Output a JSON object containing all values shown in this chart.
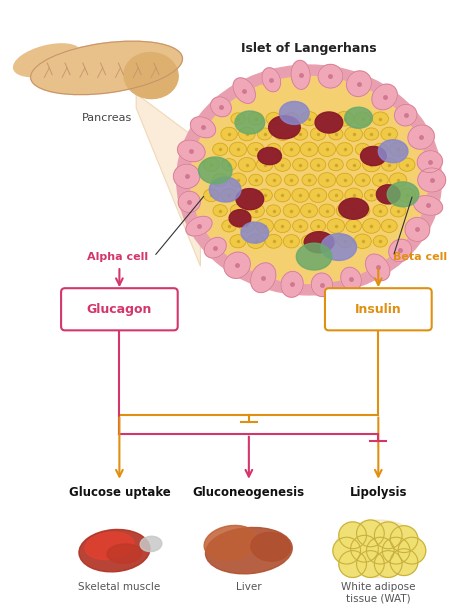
{
  "background_color": "#ffffff",
  "islet_label": "Islet of Langerhans",
  "pancreas_label": "Pancreas",
  "alpha_cell_label": "Alpha cell",
  "beta_cell_label": "Beta cell",
  "glucagon_label": "Glucagon",
  "insulin_label": "Insulin",
  "targets": [
    "Glucose uptake",
    "Gluconeogenesis",
    "Lipolysis"
  ],
  "organs": [
    "Skeletal muscle",
    "Liver",
    "White adipose\ntissue (WAT)"
  ],
  "alpha_color": "#d4366a",
  "beta_color": "#e09010",
  "islet_outer_color": "#e8a0b0",
  "islet_inner_color": "#f5d070"
}
